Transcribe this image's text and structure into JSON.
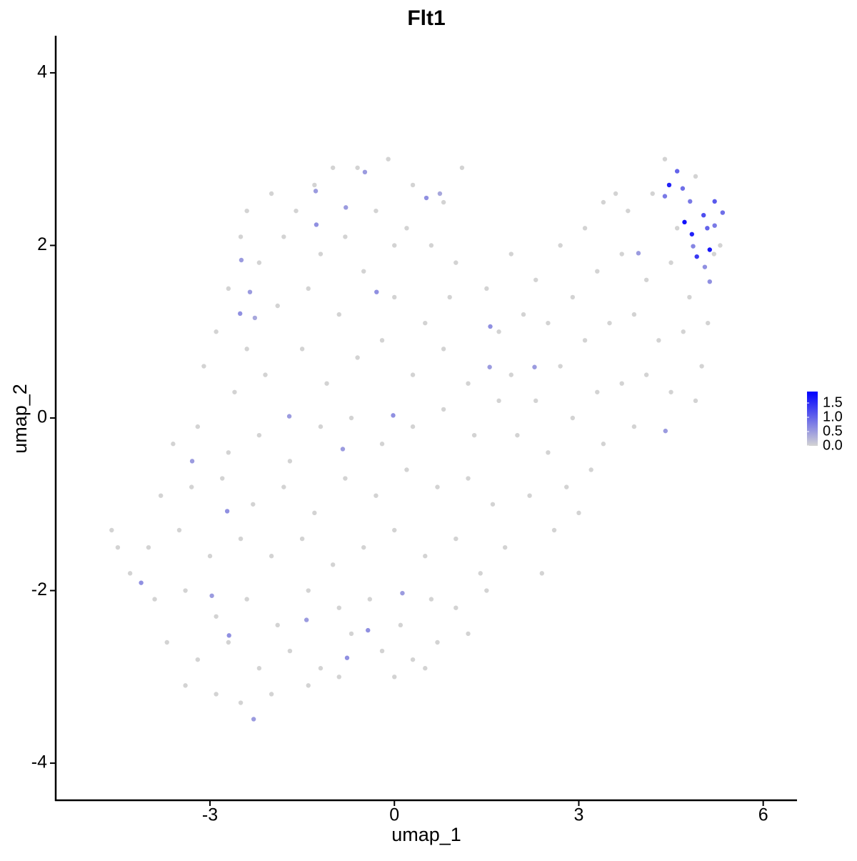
{
  "chart_data": {
    "type": "scatter",
    "title": "Flt1",
    "x_label": "umap_1",
    "y_label": "umap_2",
    "x": [
      -2.5,
      -2.0,
      -1.6,
      -1.0,
      -0.6,
      -0.1,
      0.3,
      0.8,
      1.1,
      -2.7,
      -2.2,
      -1.8,
      -1.2,
      -0.8,
      -0.3,
      0.2,
      0.6,
      1.0,
      -2.9,
      -2.4,
      -1.9,
      -1.4,
      -0.9,
      -0.5,
      0.0,
      0.5,
      0.9,
      -3.1,
      -2.6,
      -2.1,
      -1.5,
      -1.1,
      -0.6,
      -0.2,
      0.3,
      0.8,
      1.2,
      -2.4,
      -1.3,
      0.0,
      1.5,
      1.9,
      2.3,
      2.7,
      3.1,
      3.4,
      3.8,
      4.2,
      1.7,
      2.1,
      2.5,
      2.9,
      3.3,
      3.7,
      4.1,
      4.5,
      4.8,
      5.1,
      1.9,
      2.3,
      2.7,
      3.1,
      3.5,
      3.9,
      4.3,
      4.7,
      5.0,
      2.0,
      2.5,
      2.9,
      3.3,
      3.7,
      4.1,
      4.5,
      4.9,
      3.4,
      3.9,
      2.8,
      3.2,
      2.2,
      2.6,
      3.0,
      1.8,
      2.4,
      4.6,
      5.2,
      4.4,
      4.9,
      5.3,
      3.6,
      -3.6,
      -3.2,
      -2.7,
      -2.2,
      -1.7,
      -1.2,
      -0.7,
      -0.2,
      0.3,
      0.8,
      1.3,
      1.7,
      -3.8,
      -3.3,
      -2.8,
      -2.3,
      -1.8,
      -1.3,
      -0.8,
      -0.3,
      0.2,
      0.7,
      1.2,
      1.6,
      -4.0,
      -3.5,
      -3.0,
      -2.5,
      -2.0,
      -1.5,
      -1.0,
      -0.5,
      0.0,
      0.5,
      1.0,
      1.4,
      -4.6,
      -4.5,
      -3.9,
      -3.4,
      -2.9,
      -2.4,
      -1.9,
      -1.4,
      -0.9,
      -0.4,
      0.1,
      0.6,
      1.0,
      1.5,
      -3.7,
      -3.2,
      -2.7,
      -2.2,
      -1.7,
      -1.2,
      -0.7,
      -0.2,
      0.3,
      0.7,
      1.2,
      -3.4,
      -2.9,
      -2.5,
      -2.0,
      -1.4,
      -0.9,
      0.0,
      0.5,
      -4.3,
      -1.28,
      -1.27,
      -0.48,
      -0.79,
      0.52,
      0.74,
      -2.49,
      -2.35,
      -2.51,
      -2.27,
      -0.29,
      1.56,
      1.55,
      2.28,
      3.97,
      4.41,
      -1.71,
      -0.02,
      -0.84,
      -3.29,
      -2.72,
      -4.12,
      -2.97,
      0.13,
      -1.43,
      -2.69,
      -0.43,
      -0.77,
      -2.29,
      4.4,
      4.69,
      4.81,
      5.21,
      5.34,
      4.6,
      4.86,
      5.13,
      5.05,
      5.09,
      5.03,
      5.21,
      4.92,
      4.47,
      4.84,
      5.13,
      4.72
    ],
    "values": [
      2.1,
      2.6,
      2.4,
      2.9,
      2.9,
      3.0,
      2.7,
      2.5,
      2.9,
      1.5,
      1.8,
      2.1,
      1.9,
      2.1,
      2.4,
      2.2,
      2.0,
      1.8,
      1.0,
      0.8,
      1.3,
      1.5,
      1.2,
      1.7,
      1.4,
      1.1,
      1.4,
      0.6,
      0.3,
      0.5,
      0.8,
      0.4,
      0.7,
      0.9,
      0.5,
      0.8,
      0.4,
      2.4,
      2.7,
      2.0,
      1.5,
      1.9,
      1.6,
      2.0,
      2.2,
      2.5,
      2.4,
      2.6,
      1.0,
      1.2,
      1.1,
      1.4,
      1.7,
      1.9,
      1.6,
      1.8,
      1.4,
      1.1,
      0.5,
      0.2,
      0.6,
      0.9,
      1.1,
      1.2,
      0.9,
      1.0,
      0.6,
      -0.2,
      -0.4,
      0.0,
      0.3,
      0.4,
      0.5,
      0.3,
      0.2,
      -0.3,
      -0.1,
      -0.8,
      -0.6,
      -0.9,
      -1.3,
      -1.1,
      -1.5,
      -1.8,
      2.2,
      1.9,
      3.0,
      2.8,
      2.0,
      2.6,
      -0.3,
      -0.1,
      -0.4,
      -0.2,
      -0.5,
      -0.1,
      0.0,
      -0.3,
      -0.1,
      0.1,
      -0.2,
      0.2,
      -0.9,
      -0.8,
      -0.7,
      -1.0,
      -0.8,
      -1.1,
      -0.7,
      -0.9,
      -0.6,
      -0.8,
      -0.7,
      -1.0,
      -1.5,
      -1.3,
      -1.6,
      -1.4,
      -1.6,
      -1.4,
      -1.7,
      -1.5,
      -1.3,
      -1.6,
      -1.4,
      -1.8,
      -1.3,
      -1.5,
      -2.1,
      -2.0,
      -2.3,
      -2.1,
      -2.4,
      -2.0,
      -2.2,
      -2.1,
      -2.4,
      -2.1,
      -2.2,
      -2.0,
      -2.6,
      -2.8,
      -2.6,
      -2.9,
      -2.7,
      -2.9,
      -2.5,
      -2.7,
      -2.8,
      -2.6,
      -2.5,
      -3.1,
      -3.2,
      -3.3,
      -3.2,
      -3.1,
      -3.0,
      -3.0,
      -2.9,
      -1.8,
      2.63,
      2.24,
      2.85,
      2.44,
      2.55,
      2.6,
      1.83,
      1.46,
      1.21,
      1.16,
      1.46,
      1.06,
      0.59,
      0.59,
      1.91,
      -0.15,
      0.02,
      0.03,
      -0.36,
      -0.5,
      -1.08,
      -1.91,
      -2.06,
      -2.03,
      -2.34,
      -2.52,
      -2.46,
      -2.78,
      -3.49,
      2.57,
      2.66,
      2.51,
      2.51,
      2.38,
      2.86,
      1.99,
      1.58,
      1.75,
      2.2,
      2.35,
      2.23,
      1.87,
      2.7,
      2.13,
      1.95,
      2.27
    ],
    "expression": [
      0,
      0,
      0,
      0,
      0,
      0,
      0,
      0,
      0,
      0,
      0,
      0,
      0,
      0,
      0,
      0,
      0,
      0,
      0,
      0,
      0,
      0,
      0,
      0,
      0,
      0,
      0,
      0,
      0,
      0,
      0,
      0,
      0,
      0,
      0,
      0,
      0,
      0,
      0,
      0,
      0,
      0,
      0,
      0,
      0,
      0,
      0,
      0,
      0,
      0,
      0,
      0,
      0,
      0,
      0,
      0,
      0,
      0,
      0,
      0,
      0,
      0,
      0,
      0,
      0,
      0,
      0,
      0,
      0,
      0,
      0,
      0,
      0,
      0,
      0,
      0,
      0,
      0,
      0,
      0,
      0,
      0,
      0,
      0,
      0,
      0,
      0,
      0,
      0,
      0,
      0,
      0,
      0,
      0,
      0,
      0,
      0,
      0,
      0,
      0,
      0,
      0,
      0,
      0,
      0,
      0,
      0,
      0,
      0,
      0,
      0,
      0,
      0,
      0,
      0,
      0,
      0,
      0,
      0,
      0,
      0,
      0,
      0,
      0,
      0,
      0,
      0,
      0,
      0,
      0,
      0,
      0,
      0,
      0,
      0,
      0,
      0,
      0,
      0,
      0,
      0,
      0,
      0,
      0,
      0,
      0,
      0,
      0,
      0,
      0,
      0,
      0,
      0,
      0,
      0,
      0,
      0,
      0,
      0,
      0,
      0.5,
      0.6,
      0.5,
      0.5,
      0.6,
      0.4,
      0.5,
      0.5,
      0.6,
      0.4,
      0.6,
      0.6,
      0.5,
      0.5,
      0.5,
      0.5,
      0.5,
      0.6,
      0.5,
      0.5,
      0.6,
      0.6,
      0.5,
      0.5,
      0.5,
      0.6,
      0.6,
      0.6,
      0.5,
      0.8,
      0.9,
      0.8,
      1.1,
      0.9,
      1.0,
      0.7,
      0.6,
      0.6,
      1.0,
      1.2,
      0.8,
      1.4,
      1.6,
      1.6,
      1.7,
      1.75
    ],
    "xlim": [
      -5.51,
      6.55
    ],
    "ylim": [
      -4.43,
      4.43
    ],
    "xticks": [
      -3,
      0,
      3,
      6
    ],
    "yticks": [
      -4,
      -2,
      0,
      2,
      4
    ],
    "clim": [
      0,
      1.9
    ],
    "cticks": [
      {
        "value": 0,
        "label": "0.0"
      },
      0.5,
      {
        "value": 1,
        "label": "1.0"
      },
      1.5
    ],
    "low_color": "#d3d3d3",
    "high_color": "#0000ff",
    "grid": false
  }
}
